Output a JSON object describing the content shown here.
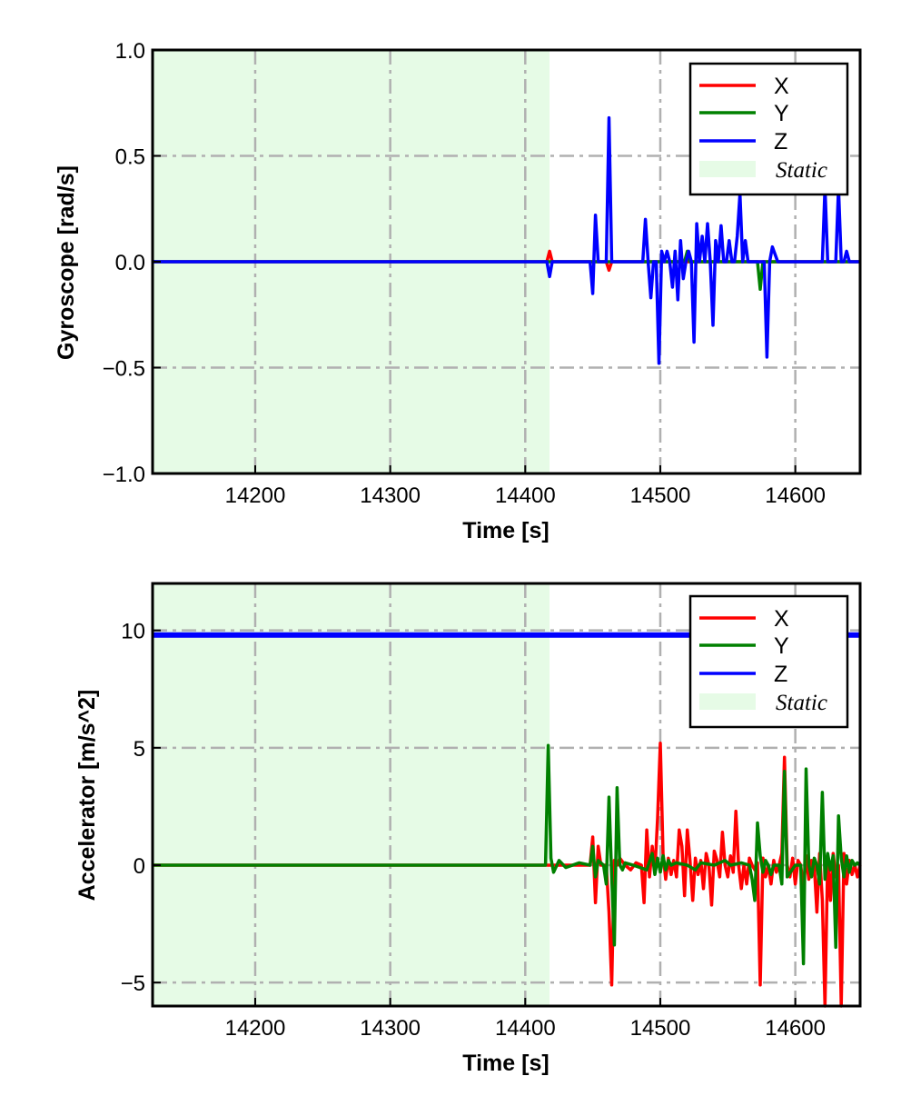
{
  "chart_data": [
    {
      "type": "line",
      "ylabel": "Gyroscope [rad/s]",
      "xlabel": "Time [s]",
      "xlim": [
        14124,
        14648
      ],
      "ylim": [
        -1.0,
        1.0
      ],
      "xticks": [
        14200,
        14300,
        14400,
        14500,
        14600
      ],
      "xtick_labels": [
        "14200",
        "14300",
        "14400",
        "14500",
        "14600"
      ],
      "yticks": [
        -1.0,
        -0.5,
        0.0,
        0.5,
        1.0
      ],
      "ytick_labels": [
        "−1.0",
        "−0.5",
        "0.0",
        "0.5",
        "1.0"
      ],
      "grid": true,
      "legend_position": "top-right",
      "static_region": {
        "label": "Static",
        "x": [
          14124,
          14418
        ],
        "color": "#e6fbe6"
      },
      "series": [
        {
          "name": "X",
          "color": "#ff0000",
          "x": [
            14124,
            14416,
            14418,
            14420,
            14460,
            14462,
            14464,
            14648
          ],
          "y": [
            0.0,
            0.0,
            0.05,
            0.0,
            0.0,
            -0.04,
            0.0,
            0.0
          ]
        },
        {
          "name": "Y",
          "color": "#008000",
          "x": [
            14124,
            14518,
            14520,
            14522,
            14572,
            14574,
            14576,
            14648
          ],
          "y": [
            0.0,
            0.0,
            0.05,
            0.0,
            0.0,
            -0.13,
            0.0,
            0.0
          ]
        },
        {
          "name": "Z",
          "color": "#0000ff",
          "x": [
            14124,
            14416,
            14418,
            14420,
            14448,
            14450,
            14452,
            14454,
            14460,
            14462,
            14464,
            14466,
            14487,
            14489,
            14491,
            14493,
            14495,
            14497,
            14499,
            14501,
            14503,
            14505,
            14507,
            14509,
            14511,
            14513,
            14515,
            14517,
            14519,
            14521,
            14523,
            14525,
            14527,
            14529,
            14531,
            14533,
            14535,
            14537,
            14539,
            14541,
            14543,
            14545,
            14547,
            14549,
            14551,
            14553,
            14555,
            14557,
            14559,
            14561,
            14563,
            14565,
            14567,
            14569,
            14571,
            14573,
            14575,
            14577,
            14579,
            14581,
            14583,
            14587,
            14589,
            14591,
            14593,
            14595,
            14597,
            14599,
            14601,
            14618,
            14620,
            14622,
            14624,
            14626,
            14628,
            14630,
            14632,
            14634,
            14636,
            14638,
            14640,
            14642,
            14644,
            14646,
            14648
          ],
          "y": [
            0.0,
            0.0,
            -0.07,
            0.0,
            0.0,
            -0.15,
            0.22,
            0.0,
            0.0,
            0.68,
            0.0,
            0.0,
            0.0,
            0.2,
            0.0,
            -0.17,
            0.0,
            0.0,
            -0.48,
            0.05,
            0.0,
            0.05,
            0.0,
            -0.12,
            0.05,
            -0.18,
            0.1,
            -0.08,
            0.0,
            0.05,
            0.0,
            -0.38,
            0.18,
            0.0,
            0.12,
            0.0,
            0.18,
            0.0,
            -0.3,
            0.1,
            0.0,
            0.17,
            0.0,
            0.0,
            0.1,
            0.0,
            0.0,
            0.12,
            0.32,
            0.0,
            0.1,
            0.0,
            0.0,
            0.0,
            0.0,
            0.0,
            0.0,
            0.0,
            -0.45,
            0.0,
            0.07,
            0.0,
            0.0,
            0.0,
            0.0,
            0.0,
            0.0,
            0.0,
            0.0,
            0.0,
            0.0,
            0.35,
            0.0,
            0.0,
            0.0,
            0.0,
            0.35,
            0.0,
            0.0,
            0.05,
            0.0,
            0.0,
            0.0,
            0.0,
            0.0
          ]
        }
      ]
    },
    {
      "type": "line",
      "ylabel": "Accelerator [m/s^2]",
      "xlabel": "Time [s]",
      "xlim": [
        14124,
        14648
      ],
      "ylim": [
        -6,
        12
      ],
      "xticks": [
        14200,
        14300,
        14400,
        14500,
        14600
      ],
      "xtick_labels": [
        "14200",
        "14300",
        "14400",
        "14500",
        "14600"
      ],
      "yticks": [
        -5,
        0,
        5,
        10
      ],
      "ytick_labels": [
        "−5",
        "0",
        "5",
        "10"
      ],
      "grid": true,
      "legend_position": "top-right",
      "static_region": {
        "label": "Static",
        "x": [
          14124,
          14418
        ],
        "color": "#e6fbe6"
      },
      "series": [
        {
          "name": "X",
          "color": "#ff0000",
          "x": [
            14124,
            14448,
            14450,
            14452,
            14454,
            14456,
            14460,
            14462,
            14464,
            14466,
            14468,
            14470,
            14474,
            14478,
            14482,
            14486,
            14488,
            14490,
            14492,
            14494,
            14496,
            14498,
            14500,
            14502,
            14504,
            14506,
            14508,
            14510,
            14512,
            14514,
            14516,
            14518,
            14520,
            14522,
            14524,
            14526,
            14528,
            14530,
            14532,
            14534,
            14536,
            14538,
            14540,
            14542,
            14544,
            14546,
            14548,
            14550,
            14552,
            14554,
            14556,
            14558,
            14560,
            14562,
            14564,
            14566,
            14568,
            14570,
            14572,
            14574,
            14576,
            14578,
            14580,
            14582,
            14584,
            14586,
            14588,
            14590,
            14592,
            14594,
            14596,
            14598,
            14600,
            14602,
            14604,
            14606,
            14608,
            14610,
            14612,
            14614,
            14616,
            14618,
            14620,
            14622,
            14624,
            14626,
            14628,
            14630,
            14632,
            14634,
            14636,
            14638,
            14640,
            14642,
            14644,
            14646,
            14648
          ],
          "y": [
            0.0,
            0.0,
            1.2,
            -1.6,
            0.8,
            0.0,
            0.0,
            -2.0,
            -5.1,
            0.2,
            0.0,
            0.3,
            0.0,
            -0.2,
            0.1,
            0.0,
            -1.6,
            1.5,
            -0.5,
            0.8,
            -0.3,
            2.0,
            5.2,
            0.5,
            -0.6,
            0.3,
            -0.4,
            0.2,
            -0.5,
            1.5,
            0.8,
            -1.3,
            1.5,
            0.2,
            -1.5,
            0.3,
            -0.4,
            0.2,
            -1.0,
            0.5,
            0.0,
            -1.7,
            0.6,
            0.2,
            -0.5,
            1.4,
            0.0,
            -0.5,
            0.4,
            -0.3,
            2.3,
            0.0,
            -1.0,
            0.0,
            -0.8,
            0.3,
            0.0,
            -0.2,
            0.1,
            -5.1,
            0.3,
            -0.5,
            0.0,
            -0.8,
            0.2,
            -0.3,
            0.0,
            0.5,
            4.6,
            0.0,
            -0.5,
            0.3,
            -0.8,
            0.2,
            0.0,
            -1.0,
            0.4,
            -0.6,
            0.2,
            0.0,
            -2.0,
            0.5,
            -1.5,
            -6.0,
            0.3,
            -1.5,
            0.5,
            -0.5,
            0.0,
            -6.0,
            0.5,
            -0.8,
            0.2,
            -0.4,
            0.0,
            -0.5,
            0.0
          ]
        },
        {
          "name": "Y",
          "color": "#008000",
          "x": [
            14124,
            14415,
            14417,
            14419,
            14421,
            14425,
            14430,
            14440,
            14448,
            14450,
            14452,
            14454,
            14458,
            14460,
            14462,
            14464,
            14466,
            14468,
            14470,
            14472,
            14474,
            14480,
            14490,
            14494,
            14496,
            14498,
            14500,
            14502,
            14504,
            14506,
            14508,
            14512,
            14520,
            14526,
            14530,
            14540,
            14548,
            14552,
            14560,
            14566,
            14568,
            14570,
            14572,
            14574,
            14576,
            14578,
            14580,
            14582,
            14584,
            14588,
            14590,
            14592,
            14594,
            14600,
            14604,
            14606,
            14608,
            14610,
            14612,
            14614,
            14616,
            14618,
            14620,
            14622,
            14624,
            14626,
            14628,
            14630,
            14632,
            14634,
            14636,
            14638,
            14640,
            14642,
            14644,
            14646,
            14648
          ],
          "y": [
            0.0,
            0.0,
            5.1,
            0.3,
            -0.3,
            0.2,
            -0.1,
            0.1,
            0.0,
            0.8,
            -0.5,
            0.2,
            0.0,
            -0.8,
            2.9,
            -0.5,
            -3.4,
            3.3,
            0.0,
            -0.2,
            0.1,
            0.0,
            -0.2,
            0.5,
            -0.4,
            0.3,
            -0.3,
            0.4,
            -0.2,
            0.2,
            0.0,
            0.1,
            0.0,
            -0.2,
            0.1,
            0.0,
            0.2,
            0.0,
            0.1,
            0.0,
            -0.6,
            -1.5,
            1.8,
            0.4,
            -0.3,
            0.2,
            0.0,
            -0.4,
            0.0,
            0.0,
            -0.8,
            4.0,
            -0.5,
            0.0,
            0.0,
            -4.2,
            4.1,
            0.0,
            -0.5,
            0.3,
            0.0,
            -0.8,
            3.1,
            -0.6,
            0.5,
            -0.2,
            0.4,
            -3.5,
            2.1,
            0.3,
            -0.5,
            0.4,
            -0.3,
            0.2,
            0.0,
            0.1,
            0.0
          ]
        },
        {
          "name": "Z",
          "color": "#0000ff",
          "x": [
            14124,
            14648
          ],
          "y": [
            9.8,
            9.8
          ]
        }
      ]
    }
  ]
}
